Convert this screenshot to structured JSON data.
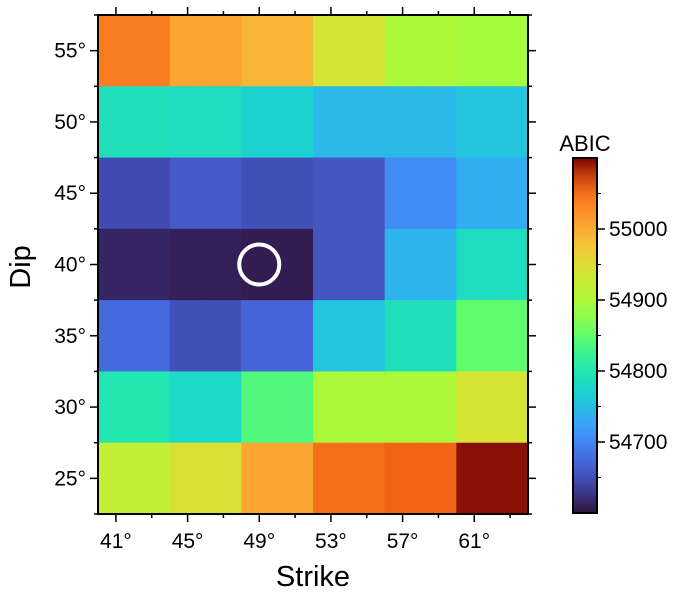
{
  "chart_data": {
    "type": "heatmap",
    "xlabel": "Strike",
    "ylabel": "Dip",
    "x": [
      41,
      43,
      45,
      47,
      49,
      51,
      53,
      55,
      57,
      59,
      61,
      63
    ],
    "y": [
      55,
      50,
      45,
      40,
      35,
      30,
      25
    ],
    "x_tick_labels": [
      "41°",
      "45°",
      "49°",
      "53°",
      "57°",
      "61°"
    ],
    "y_tick_labels": [
      "55°",
      "50°",
      "45°",
      "40°",
      "35°",
      "30°",
      "25°"
    ],
    "colorbar": {
      "title": "ABIC",
      "min": 54600,
      "max": 55100,
      "ticks": [
        "54700",
        "54800",
        "54900",
        "55000"
      ],
      "colormap": "turbo"
    },
    "values": [
      [
        55040,
        55040,
        55005,
        55005,
        54990,
        54990,
        54940,
        54940,
        54900,
        54900,
        54890,
        54890
      ],
      [
        54790,
        54790,
        54785,
        54785,
        54770,
        54770,
        54745,
        54745,
        54745,
        54745,
        54755,
        54755
      ],
      [
        54645,
        54645,
        54660,
        54660,
        54650,
        54650,
        54655,
        54655,
        54705,
        54705,
        54735,
        54735
      ],
      [
        54615,
        54615,
        54610,
        54610,
        54608,
        54608,
        54655,
        54655,
        54740,
        54740,
        54785,
        54785
      ],
      [
        54675,
        54675,
        54650,
        54650,
        54670,
        54670,
        54755,
        54755,
        54790,
        54790,
        54850,
        54850
      ],
      [
        54800,
        54800,
        54780,
        54780,
        54840,
        54840,
        54900,
        54900,
        54900,
        54900,
        54940,
        54940
      ],
      [
        54920,
        54920,
        54945,
        54945,
        55005,
        55005,
        55050,
        55050,
        55060,
        55060,
        55095,
        55095
      ]
    ],
    "marker": {
      "strike": 49,
      "dip": 40,
      "shape": "circle",
      "color": "#ffffff"
    }
  }
}
